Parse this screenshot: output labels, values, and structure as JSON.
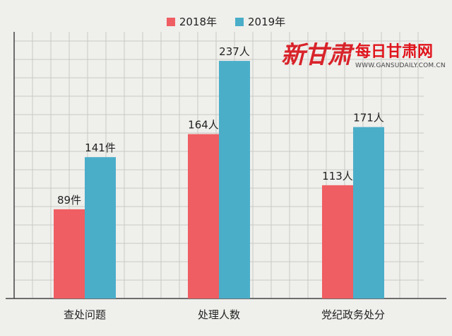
{
  "legend": {
    "series_2018": "2018年",
    "series_2019": "2019年"
  },
  "watermark": {
    "logo_text": "新甘肃",
    "brand": "每日甘肃网",
    "url": "WWW.GANSUDAILY.COM.CN"
  },
  "colors": {
    "series_2018": "#ef5e62",
    "series_2019": "#4aaec9",
    "grid": "#c9c9c5",
    "axis": "#444444",
    "background": "#efefec"
  },
  "chart_data": {
    "type": "bar",
    "categories": [
      "查处问题",
      "处理人数",
      "党纪政务处分"
    ],
    "series": [
      {
        "name": "2018年",
        "values": [
          89,
          164,
          113
        ],
        "labels": [
          "89件",
          "164人",
          "113人"
        ]
      },
      {
        "name": "2019年",
        "values": [
          141,
          237,
          171
        ],
        "labels": [
          "141件",
          "237人",
          "171人"
        ]
      }
    ],
    "ylim": [
      0,
      266
    ],
    "grid": true,
    "legend_position": "top-center"
  }
}
